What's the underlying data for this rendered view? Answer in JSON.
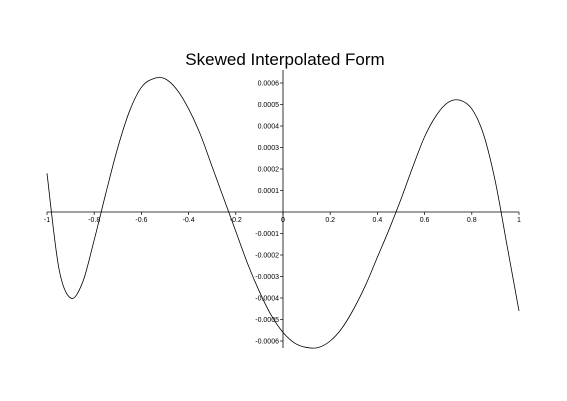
{
  "chart_data": {
    "type": "line",
    "title": "Skewed Interpolated Form",
    "xlabel": "",
    "ylabel": "",
    "xlim": [
      -1,
      1
    ],
    "ylim": [
      -0.00064,
      0.00064
    ],
    "grid": false,
    "x_ticks": [
      -1,
      -0.8,
      -0.6,
      -0.4,
      -0.2,
      0,
      0.2,
      0.4,
      0.6,
      0.8,
      1
    ],
    "x_tick_labels": [
      "-1",
      "-0.8",
      "-0.6",
      "-0.4",
      "-0.2",
      "0",
      "0.2",
      "0.4",
      "0.6",
      "0.8",
      "1"
    ],
    "y_ticks": [
      0.0006,
      0.0005,
      0.0004,
      0.0003,
      0.0002,
      0.0001,
      -0.0001,
      -0.0002,
      -0.0003,
      -0.0004,
      -0.0005,
      -0.0006
    ],
    "y_tick_labels": [
      "0.0006",
      "0.0005",
      "0.0004",
      "0.0003",
      "0.0002",
      "0.0001",
      "-0.0001",
      "-0.0002",
      "-0.0003",
      "-0.0004",
      "-0.0005",
      "-0.0006"
    ],
    "series": [
      {
        "x": [
          -1,
          -0.95,
          -0.9,
          -0.85,
          -0.8,
          -0.75,
          -0.7,
          -0.65,
          -0.6,
          -0.55,
          -0.5,
          -0.45,
          -0.4,
          -0.35,
          -0.3,
          -0.25,
          -0.2,
          -0.15,
          -0.1,
          -0.05,
          0,
          0.05,
          0.1,
          0.15,
          0.2,
          0.25,
          0.3,
          0.35,
          0.4,
          0.45,
          0.5,
          0.55,
          0.6,
          0.65,
          0.7,
          0.75,
          0.8,
          0.85,
          0.9,
          0.95,
          1
        ],
        "y": [
          0.00018,
          -0.00026,
          -0.0004,
          -0.00033,
          -0.00013,
          9e-05,
          0.0003,
          0.00047,
          0.00058,
          0.00062,
          0.00062,
          0.00057,
          0.00048,
          0.00036,
          0.00021,
          6e-05,
          -9e-05,
          -0.00024,
          -0.00037,
          -0.00048,
          -0.00056,
          -0.00061,
          -0.00063,
          -0.00063,
          -0.0006,
          -0.00054,
          -0.00045,
          -0.00034,
          -0.00021,
          -8e-05,
          6e-05,
          0.00021,
          0.00035,
          0.00045,
          0.00051,
          0.00052,
          0.00048,
          0.00036,
          0.00014,
          -0.00016,
          -0.00046
        ]
      }
    ]
  }
}
